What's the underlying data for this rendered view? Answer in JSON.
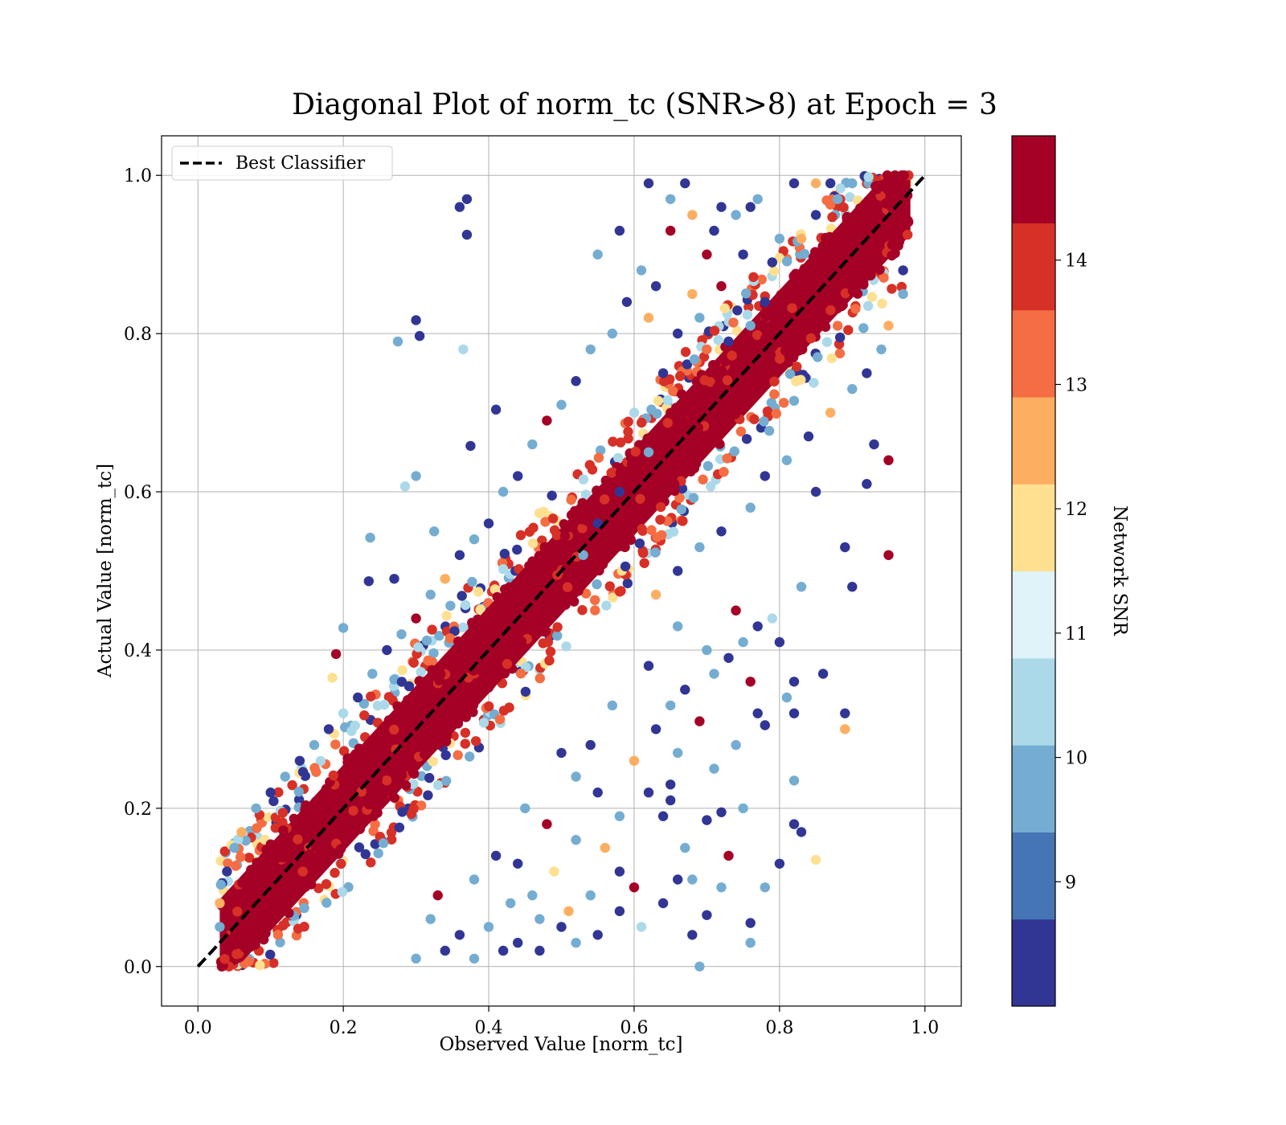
{
  "chart_data": {
    "type": "scatter",
    "title": "Diagonal Plot of norm_tc (SNR>8) at Epoch = 3",
    "xlabel": "Observed Value [norm_tc]",
    "ylabel": "Actual Value [norm_tc]",
    "xlim": [
      -0.05,
      1.05
    ],
    "ylim": [
      -0.05,
      1.05
    ],
    "xticks": [
      0.0,
      0.2,
      0.4,
      0.6,
      0.8,
      1.0
    ],
    "yticks": [
      0.0,
      0.2,
      0.4,
      0.6,
      0.8,
      1.0
    ],
    "xtick_labels": [
      "0.0",
      "0.2",
      "0.4",
      "0.6",
      "0.8",
      "1.0"
    ],
    "ytick_labels": [
      "0.0",
      "0.2",
      "0.4",
      "0.6",
      "0.8",
      "1.0"
    ],
    "grid": true,
    "legend": {
      "placement": "top-left",
      "entries": [
        {
          "label": "Best Classifier",
          "style": "dashed",
          "color": "#000000"
        }
      ]
    },
    "reference_line": {
      "from": [
        0.0,
        0.0
      ],
      "to": [
        1.0,
        1.0
      ]
    },
    "colorbar": {
      "label": "Network SNR",
      "range": [
        8,
        15
      ],
      "ticks": [
        9,
        10,
        11,
        12,
        13,
        14
      ],
      "tick_labels": [
        "9",
        "10",
        "11",
        "12",
        "13",
        "14"
      ],
      "colors": [
        "#313695",
        "#4575b4",
        "#74add1",
        "#abd9e9",
        "#e0f3f8",
        "#fee090",
        "#fdae61",
        "#f46d43",
        "#d73027",
        "#a50026"
      ]
    },
    "series": [
      {
        "kind": "dense-band",
        "color": "#a50026",
        "band_width": 0.11,
        "x_range": [
          0.03,
          0.98
        ],
        "y_range": [
          0.0,
          1.0
        ]
      },
      {
        "kind": "outliers",
        "points": [
          [
            0.36,
            0.96,
            8.3
          ],
          [
            0.37,
            0.97,
            8.3
          ],
          [
            0.37,
            0.925,
            8.3
          ],
          [
            0.3,
            0.817,
            8.3
          ],
          [
            0.305,
            0.797,
            8.3
          ],
          [
            0.275,
            0.79,
            9.8
          ],
          [
            0.365,
            0.78,
            10.5
          ],
          [
            0.41,
            0.704,
            8.3
          ],
          [
            0.375,
            0.658,
            8.3
          ],
          [
            0.3,
            0.62,
            9.8
          ],
          [
            0.285,
            0.607,
            10.5
          ],
          [
            0.237,
            0.542,
            9.8
          ],
          [
            0.325,
            0.55,
            9.8
          ],
          [
            0.27,
            0.49,
            8.3
          ],
          [
            0.235,
            0.487,
            8.3
          ],
          [
            0.2,
            0.428,
            9.8
          ],
          [
            0.19,
            0.395,
            14.5
          ],
          [
            0.185,
            0.365,
            11.5
          ],
          [
            0.62,
            0.99,
            8.3
          ],
          [
            0.67,
            0.99,
            8.3
          ],
          [
            0.72,
            0.96,
            8.3
          ],
          [
            0.76,
            0.96,
            8.3
          ],
          [
            0.82,
            0.99,
            8.3
          ],
          [
            0.85,
            0.99,
            12.5
          ],
          [
            0.65,
            0.93,
            14.5
          ],
          [
            0.7,
            0.9,
            14.5
          ],
          [
            0.75,
            0.9,
            8.3
          ],
          [
            0.8,
            0.92,
            9.8
          ],
          [
            0.68,
            0.85,
            12.5
          ],
          [
            0.72,
            0.86,
            14.5
          ],
          [
            0.62,
            0.82,
            12.5
          ],
          [
            0.66,
            0.8,
            8.3
          ],
          [
            0.7,
            0.78,
            13.5
          ],
          [
            0.64,
            0.75,
            8.3
          ],
          [
            0.67,
            0.72,
            14.5
          ],
          [
            0.6,
            0.7,
            10.5
          ],
          [
            0.62,
            0.65,
            9.8
          ],
          [
            0.58,
            0.6,
            8.3
          ],
          [
            0.55,
            0.56,
            8.3
          ],
          [
            0.53,
            0.52,
            9.8
          ],
          [
            0.95,
            0.52,
            14.5
          ],
          [
            0.95,
            0.64,
            14.5
          ],
          [
            0.93,
            0.66,
            8.3
          ],
          [
            0.92,
            0.61,
            8.3
          ],
          [
            0.89,
            0.53,
            8.3
          ],
          [
            0.9,
            0.48,
            8.3
          ],
          [
            0.85,
            0.6,
            8.3
          ],
          [
            0.83,
            0.48,
            9.8
          ],
          [
            0.86,
            0.37,
            8.3
          ],
          [
            0.82,
            0.36,
            8.3
          ],
          [
            0.81,
            0.34,
            9.8
          ],
          [
            0.82,
            0.32,
            8.3
          ],
          [
            0.89,
            0.32,
            8.3
          ],
          [
            0.89,
            0.3,
            12.5
          ],
          [
            0.78,
            0.305,
            8.3
          ],
          [
            0.76,
            0.36,
            14.5
          ],
          [
            0.82,
            0.235,
            9.8
          ],
          [
            0.82,
            0.18,
            8.3
          ],
          [
            0.83,
            0.17,
            8.3
          ],
          [
            0.8,
            0.13,
            8.3
          ],
          [
            0.85,
            0.135,
            11.5
          ],
          [
            0.78,
            0.1,
            9.8
          ],
          [
            0.76,
            0.055,
            8.3
          ],
          [
            0.76,
            0.03,
            9.8
          ],
          [
            0.69,
            0.0,
            9.8
          ],
          [
            0.7,
            0.065,
            8.3
          ],
          [
            0.72,
            0.1,
            9.8
          ],
          [
            0.72,
            0.195,
            8.3
          ],
          [
            0.7,
            0.185,
            8.3
          ],
          [
            0.65,
            0.23,
            8.3
          ],
          [
            0.65,
            0.21,
            8.3
          ],
          [
            0.64,
            0.19,
            8.3
          ],
          [
            0.66,
            0.11,
            8.3
          ],
          [
            0.68,
            0.11,
            9.8
          ],
          [
            0.6,
            0.1,
            14.5
          ],
          [
            0.58,
            0.07,
            8.3
          ],
          [
            0.55,
            0.04,
            8.3
          ],
          [
            0.52,
            0.03,
            9.8
          ],
          [
            0.5,
            0.05,
            8.3
          ],
          [
            0.47,
            0.06,
            9.8
          ],
          [
            0.44,
            0.03,
            8.3
          ],
          [
            0.42,
            0.02,
            8.3
          ],
          [
            0.38,
            0.01,
            9.8
          ],
          [
            0.34,
            0.02,
            8.3
          ],
          [
            0.3,
            0.01,
            9.8
          ],
          [
            0.56,
            0.15,
            12.5
          ],
          [
            0.58,
            0.19,
            9.8
          ],
          [
            0.55,
            0.22,
            8.3
          ],
          [
            0.52,
            0.16,
            9.8
          ],
          [
            0.49,
            0.12,
            11.5
          ],
          [
            0.46,
            0.09,
            9.8
          ],
          [
            0.44,
            0.13,
            8.3
          ],
          [
            0.48,
            0.18,
            14.5
          ],
          [
            0.52,
            0.24,
            9.8
          ],
          [
            0.54,
            0.28,
            8.3
          ],
          [
            0.6,
            0.26,
            12.5
          ],
          [
            0.63,
            0.3,
            8.3
          ],
          [
            0.65,
            0.33,
            9.8
          ],
          [
            0.67,
            0.35,
            8.3
          ],
          [
            0.71,
            0.37,
            9.8
          ],
          [
            0.73,
            0.39,
            8.3
          ],
          [
            0.75,
            0.41,
            9.8
          ],
          [
            0.77,
            0.43,
            8.3
          ],
          [
            0.79,
            0.44,
            10.5
          ],
          [
            0.8,
            0.41,
            8.3
          ],
          [
            0.74,
            0.45,
            14.5
          ],
          [
            0.7,
            0.4,
            9.8
          ],
          [
            0.69,
            0.31,
            14.5
          ],
          [
            0.66,
            0.27,
            9.8
          ],
          [
            0.62,
            0.22,
            8.3
          ],
          [
            0.58,
            0.12,
            8.3
          ],
          [
            0.61,
            0.05,
            10.5
          ],
          [
            0.64,
            0.08,
            8.3
          ],
          [
            0.67,
            0.15,
            9.8
          ],
          [
            0.71,
            0.25,
            9.8
          ],
          [
            0.74,
            0.28,
            9.8
          ],
          [
            0.77,
            0.32,
            8.3
          ],
          [
            0.75,
            0.2,
            9.8
          ],
          [
            0.73,
            0.14,
            14.5
          ],
          [
            0.68,
            0.04,
            8.3
          ],
          [
            0.54,
            0.09,
            9.8
          ],
          [
            0.51,
            0.07,
            12.5
          ],
          [
            0.47,
            0.02,
            8.3
          ],
          [
            0.43,
            0.08,
            9.8
          ],
          [
            0.4,
            0.05,
            9.8
          ],
          [
            0.36,
            0.04,
            8.3
          ],
          [
            0.32,
            0.06,
            9.8
          ],
          [
            0.33,
            0.09,
            14.5
          ],
          [
            0.38,
            0.11,
            9.8
          ],
          [
            0.41,
            0.14,
            8.3
          ],
          [
            0.45,
            0.2,
            9.8
          ],
          [
            0.5,
            0.27,
            8.3
          ],
          [
            0.57,
            0.33,
            9.8
          ],
          [
            0.62,
            0.38,
            8.3
          ],
          [
            0.66,
            0.43,
            9.8
          ],
          [
            0.63,
            0.47,
            12.5
          ],
          [
            0.66,
            0.5,
            8.3
          ],
          [
            0.69,
            0.53,
            9.8
          ],
          [
            0.72,
            0.55,
            8.3
          ],
          [
            0.76,
            0.58,
            9.8
          ],
          [
            0.78,
            0.62,
            8.3
          ],
          [
            0.81,
            0.64,
            9.8
          ],
          [
            0.84,
            0.67,
            8.3
          ],
          [
            0.87,
            0.7,
            12.5
          ],
          [
            0.9,
            0.73,
            9.8
          ],
          [
            0.92,
            0.75,
            8.3
          ],
          [
            0.94,
            0.78,
            9.8
          ],
          [
            0.95,
            0.81,
            12.5
          ],
          [
            0.97,
            0.85,
            9.8
          ],
          [
            0.97,
            0.88,
            8.3
          ],
          [
            0.55,
            0.9,
            9.8
          ],
          [
            0.58,
            0.93,
            8.3
          ],
          [
            0.61,
            0.88,
            9.8
          ],
          [
            0.59,
            0.84,
            8.3
          ],
          [
            0.57,
            0.8,
            9.8
          ],
          [
            0.54,
            0.78,
            9.8
          ],
          [
            0.52,
            0.74,
            8.3
          ],
          [
            0.5,
            0.71,
            9.8
          ],
          [
            0.48,
            0.69,
            14.5
          ],
          [
            0.46,
            0.66,
            9.8
          ],
          [
            0.44,
            0.62,
            8.3
          ],
          [
            0.42,
            0.6,
            9.8
          ],
          [
            0.4,
            0.56,
            8.3
          ],
          [
            0.38,
            0.54,
            9.8
          ],
          [
            0.36,
            0.52,
            8.3
          ],
          [
            0.34,
            0.49,
            12.5
          ],
          [
            0.32,
            0.47,
            9.8
          ],
          [
            0.3,
            0.44,
            14.5
          ],
          [
            0.28,
            0.42,
            9.8
          ],
          [
            0.26,
            0.4,
            8.3
          ],
          [
            0.24,
            0.37,
            9.8
          ],
          [
            0.22,
            0.34,
            8.3
          ],
          [
            0.2,
            0.32,
            10.5
          ],
          [
            0.18,
            0.3,
            8.3
          ],
          [
            0.16,
            0.28,
            9.8
          ],
          [
            0.14,
            0.26,
            8.3
          ],
          [
            0.12,
            0.24,
            9.8
          ],
          [
            0.1,
            0.22,
            8.3
          ],
          [
            0.08,
            0.2,
            9.8
          ],
          [
            0.06,
            0.17,
            12.5
          ],
          [
            0.05,
            0.15,
            9.8
          ],
          [
            0.04,
            0.12,
            8.3
          ],
          [
            0.03,
            0.08,
            12.5
          ],
          [
            0.03,
            0.05,
            9.8
          ],
          [
            0.65,
            0.97,
            9.8
          ],
          [
            0.68,
            0.95,
            12.5
          ],
          [
            0.71,
            0.93,
            8.3
          ],
          [
            0.74,
            0.95,
            9.8
          ],
          [
            0.77,
            0.97,
            9.8
          ],
          [
            0.79,
            0.89,
            8.3
          ],
          [
            0.83,
            0.92,
            12.5
          ],
          [
            0.85,
            0.95,
            8.3
          ],
          [
            0.88,
            0.97,
            9.8
          ],
          [
            0.87,
            0.99,
            8.3
          ],
          [
            0.9,
            0.99,
            9.8
          ],
          [
            0.63,
            0.86,
            8.3
          ],
          [
            0.69,
            0.82,
            9.8
          ],
          [
            0.73,
            0.79,
            8.3
          ],
          [
            0.76,
            0.81,
            9.8
          ],
          [
            0.78,
            0.84,
            8.3
          ]
        ]
      }
    ]
  }
}
